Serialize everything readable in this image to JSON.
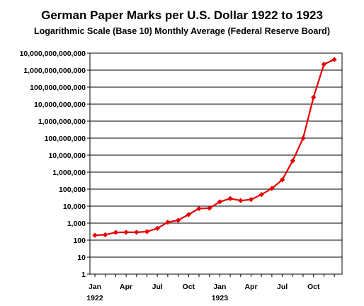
{
  "chart_data": {
    "type": "line",
    "title": "German Paper Marks per U.S. Dollar 1922 to 1923",
    "subtitle": "Logarithmic Scale (Base 10) Monthly Average (Federal Reserve Board)",
    "y_scale": "log10",
    "ylim": [
      1,
      10000000000000
    ],
    "y_ticks": [
      "1",
      "10",
      "100",
      "1,000",
      "10,000",
      "100,000",
      "1,000,000",
      "10,000,000",
      "100,000,000",
      "1,000,000,000",
      "10,000,000,000",
      "100,000,000,000",
      "1,000,000,000,000",
      "10,000,000,000,000"
    ],
    "x_ticks": [
      {
        "month": 0,
        "label": "Jan",
        "year_label": "1922"
      },
      {
        "month": 3,
        "label": "Apr",
        "year_label": ""
      },
      {
        "month": 6,
        "label": "Jul",
        "year_label": ""
      },
      {
        "month": 9,
        "label": "Oct",
        "year_label": ""
      },
      {
        "month": 12,
        "label": "Jan",
        "year_label": "1923"
      },
      {
        "month": 15,
        "label": "Apr",
        "year_label": ""
      },
      {
        "month": 18,
        "label": "Jul",
        "year_label": ""
      },
      {
        "month": 21,
        "label": "Oct",
        "year_label": ""
      }
    ],
    "x_months": [
      "Jan 1922",
      "Feb 1922",
      "Mar 1922",
      "Apr 1922",
      "May 1922",
      "Jun 1922",
      "Jul 1922",
      "Aug 1922",
      "Sep 1922",
      "Oct 1922",
      "Nov 1922",
      "Dec 1922",
      "Jan 1923",
      "Feb 1923",
      "Mar 1923",
      "Apr 1923",
      "May 1923",
      "Jun 1923",
      "Jul 1923",
      "Aug 1923",
      "Sep 1923",
      "Oct 1923",
      "Nov 1923",
      "Dec 1923"
    ],
    "values": [
      191.8,
      207.8,
      284.2,
      291.0,
      290.1,
      317.1,
      493.2,
      1134.6,
      1465.9,
      3180.9,
      7183.1,
      7589.3,
      17972,
      27918,
      21190,
      24457,
      47670,
      109966,
      353412,
      4620455,
      98860000,
      25260208000,
      2193600000000,
      4200000000000
    ],
    "series_color": "#e60000",
    "grid": "horizontal"
  }
}
